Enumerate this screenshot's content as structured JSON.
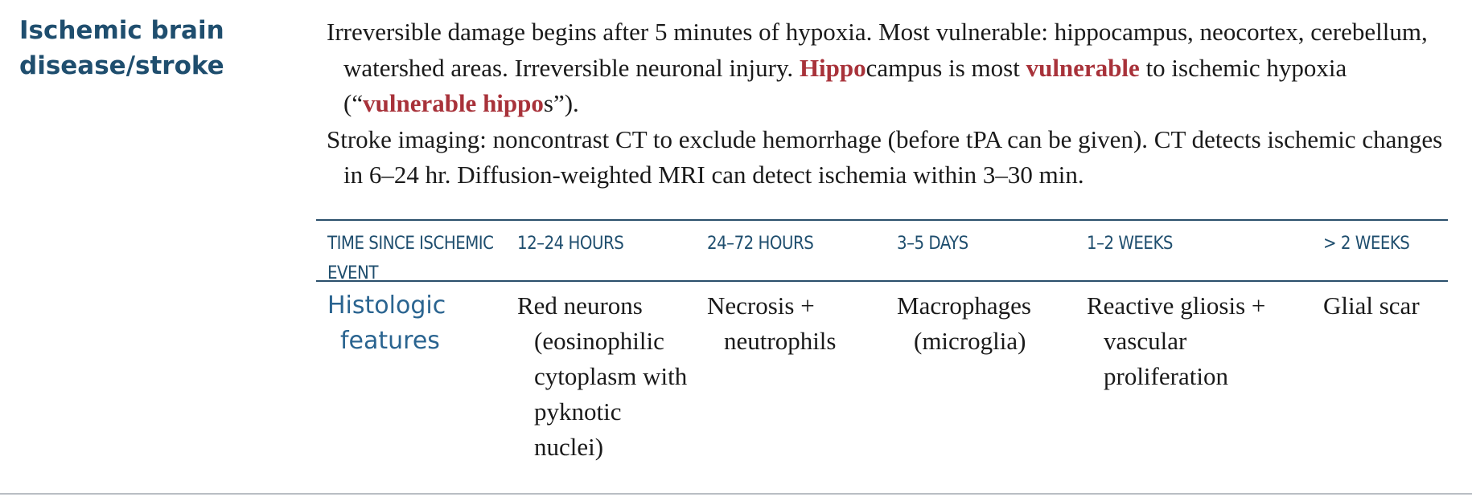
{
  "section": {
    "heading_line1": "Ischemic brain",
    "heading_line2": "disease/stroke"
  },
  "paragraph1": {
    "part1": "Irreversible damage begins after 5 minutes of hypoxia. Most vulnerable: hippocampus, neocortex, cerebellum, watershed areas. Irreversible neuronal injury. ",
    "hippo_red": "Hippo",
    "part2": "campus is most ",
    "vulnerable_red": "vulnerable",
    "part3": " to ischemic hypoxia (“",
    "vulnerable_hippo_red": "vulnerable hippo",
    "part4": "s”)."
  },
  "paragraph2": {
    "text": "Stroke imaging: noncontrast CT to exclude hemorrhage (before tPA can be given). CT detects ischemic changes in 6–24 hr. Diffusion-weighted MRI can detect ischemia within 3–30 min."
  },
  "table": {
    "headers": [
      {
        "line1": "TIME SINCE ISCHEMIC",
        "line2": "EVENT"
      },
      {
        "line1": "12–24 HOURS"
      },
      {
        "line1": "24–72 HOURS"
      },
      {
        "line1": "3–5 DAYS"
      },
      {
        "line1": "1–2 WEEKS"
      },
      {
        "line1": "> 2 WEEKS"
      }
    ],
    "row_label": "Histologic features",
    "cells": [
      "Red neurons (eosinophilic cytoplasm with pyknotic nuclei)",
      "Necrosis + neutrophils",
      "Macrophages (microglia)",
      "Reactive gliosis + vascular proliferation",
      "Glial scar"
    ]
  },
  "colors": {
    "heading": "#1f4e6e",
    "row_label": "#2a6490",
    "highlight_red": "#a8323a",
    "rule": "#2a4f6b"
  }
}
